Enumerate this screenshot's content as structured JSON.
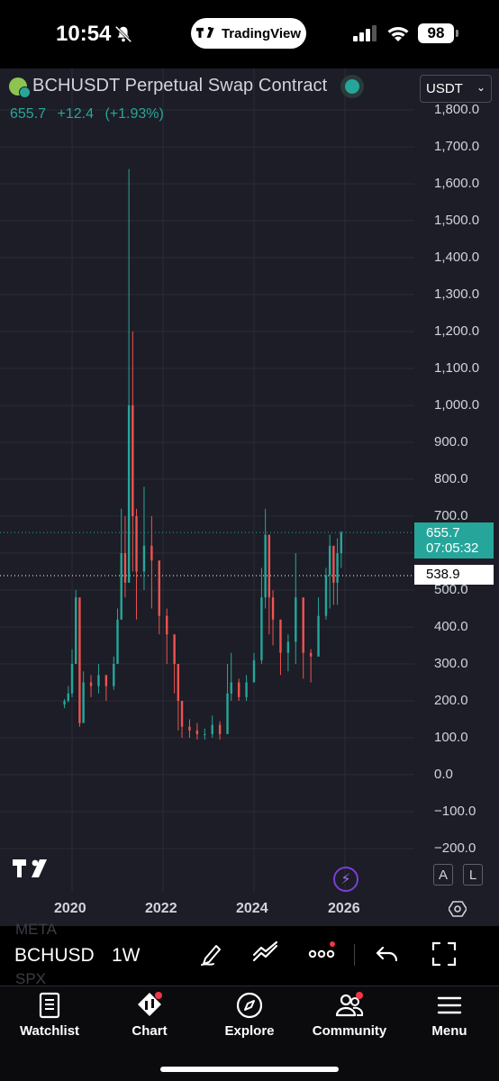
{
  "status_bar": {
    "time": "10:54",
    "app_pill_label": "TradingView",
    "battery": "98"
  },
  "header": {
    "title": "BCHUSDT Perpetual Swap Contract",
    "last_price": "655.7",
    "change": "+12.4",
    "change_pct": "(+1.93%)",
    "currency": "USDT"
  },
  "price_axis": {
    "labels": [
      "1,800.0",
      "1,700.0",
      "1,600.0",
      "1,500.0",
      "1,400.0",
      "1,300.0",
      "1,200.0",
      "1,100.0",
      "1,000.0",
      "900.0",
      "800.0",
      "700.0",
      "600.0",
      "500.0",
      "400.0",
      "300.0",
      "200.0",
      "100.0",
      "0.0",
      "−100.0",
      "−200.0"
    ],
    "last_tag_price": "655.7",
    "last_tag_countdown": "07:05:32",
    "crosshair_price": "538.9"
  },
  "time_axis": {
    "labels": [
      "2020",
      "2022",
      "2024",
      "2026"
    ]
  },
  "chart_data": {
    "type": "candlestick",
    "title": "BCHUSDT Perpetual Swap Contract",
    "interval": "1W",
    "ylim": [
      -250,
      1820
    ],
    "x": [
      "2019-11",
      "2019-12",
      "2020-01",
      "2020-02",
      "2020-03",
      "2020-04",
      "2020-06",
      "2020-08",
      "2020-10",
      "2020-12",
      "2021-01",
      "2021-02",
      "2021-03",
      "2021-04",
      "2021-05",
      "2021-06",
      "2021-08",
      "2021-10",
      "2021-12",
      "2022-02",
      "2022-04",
      "2022-05",
      "2022-06",
      "2022-08",
      "2022-10",
      "2022-12",
      "2023-02",
      "2023-04",
      "2023-06",
      "2023-07",
      "2023-09",
      "2023-11",
      "2024-01",
      "2024-03",
      "2024-04",
      "2024-05",
      "2024-06",
      "2024-08",
      "2024-10",
      "2024-12",
      "2025-02",
      "2025-04",
      "2025-06",
      "2025-08",
      "2025-09",
      "2025-10",
      "2025-11",
      "2025-12"
    ],
    "close": [
      200,
      220,
      300,
      480,
      140,
      250,
      240,
      270,
      240,
      300,
      420,
      600,
      520,
      1000,
      700,
      550,
      620,
      580,
      430,
      380,
      300,
      200,
      130,
      120,
      110,
      110,
      135,
      110,
      220,
      250,
      210,
      250,
      310,
      480,
      650,
      480,
      420,
      330,
      360,
      480,
      330,
      320,
      430,
      540,
      620,
      520,
      600,
      655.7
    ],
    "high": [
      205,
      240,
      340,
      500,
      300,
      280,
      270,
      300,
      260,
      320,
      450,
      720,
      700,
      1640,
      1200,
      720,
      780,
      700,
      500,
      450,
      340,
      300,
      160,
      150,
      140,
      125,
      160,
      145,
      300,
      330,
      260,
      270,
      330,
      560,
      720,
      520,
      500,
      360,
      380,
      600,
      420,
      340,
      480,
      560,
      650,
      600,
      640,
      660
    ],
    "low": [
      180,
      195,
      210,
      300,
      130,
      200,
      210,
      220,
      200,
      230,
      300,
      420,
      480,
      520,
      550,
      420,
      500,
      450,
      380,
      300,
      220,
      120,
      100,
      100,
      95,
      95,
      100,
      95,
      110,
      200,
      200,
      200,
      260,
      300,
      450,
      380,
      350,
      270,
      280,
      300,
      260,
      250,
      320,
      420,
      450,
      460,
      460,
      560
    ],
    "last_price": 655.7,
    "marker_price": 538.9,
    "colors": {
      "up": "#26a69a",
      "down": "#ef5350"
    }
  },
  "toolbar": {
    "ghost_top": "META",
    "ghost_bottom": "SPX",
    "symbol": "BCHUSD",
    "interval": "1W"
  },
  "tabs": [
    {
      "label": "Watchlist",
      "icon": "book-icon"
    },
    {
      "label": "Chart",
      "icon": "chart-icon"
    },
    {
      "label": "Explore",
      "icon": "compass-icon"
    },
    {
      "label": "Community",
      "icon": "people-icon"
    },
    {
      "label": "Menu",
      "icon": "menu-icon"
    }
  ],
  "scale_buttons": {
    "auto": "A",
    "log": "L"
  }
}
